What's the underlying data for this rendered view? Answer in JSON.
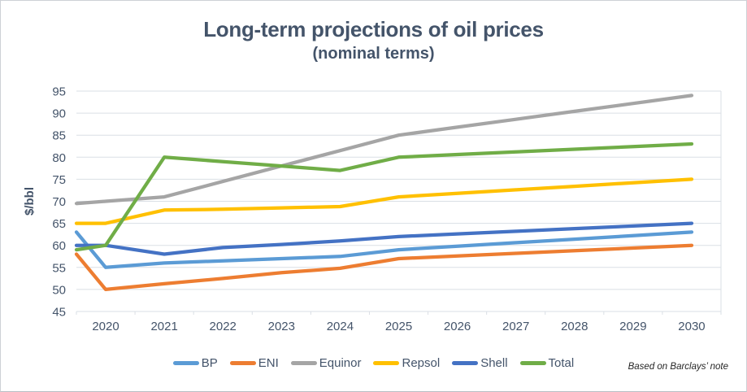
{
  "header": {
    "title": "Long-term projections of oil prices",
    "subtitle": "(nominal terms)"
  },
  "footer": {
    "note": "Based on Barclays’ note"
  },
  "chart_data": {
    "type": "line",
    "title": "Long-term projections of oil prices",
    "subtitle": "(nominal terms)",
    "ylabel": "$/bbl",
    "xlabel": "",
    "ylim": [
      45,
      95
    ],
    "y_ticks": [
      45,
      50,
      55,
      60,
      65,
      70,
      75,
      80,
      85,
      90,
      95
    ],
    "x": [
      2019,
      2020,
      2021,
      2022,
      2023,
      2024,
      2025,
      2026,
      2027,
      2028,
      2029,
      2030
    ],
    "x_tick_labels": [
      "2020",
      "2021",
      "2022",
      "2023",
      "2024",
      "2025",
      "2026",
      "2027",
      "2028",
      "2029",
      "2030"
    ],
    "layout_note": "first data point (2019) sits at the unlabeled left edge of the plot; horizontal gridlines only; legend at bottom",
    "grid": "horizontal",
    "legend_position": "bottom",
    "axis_color": "#44546A",
    "grid_color": "#dadfe5",
    "series": [
      {
        "name": "BP",
        "color": "#5B9BD5",
        "values": [
          63.0,
          55.0,
          56.0,
          56.5,
          57.0,
          57.5,
          59.0,
          59.8,
          60.6,
          61.4,
          62.2,
          63.0
        ]
      },
      {
        "name": "ENI",
        "color": "#ED7D31",
        "values": [
          58.0,
          50.0,
          51.3,
          52.5,
          53.8,
          54.8,
          57.0,
          57.6,
          58.2,
          58.8,
          59.4,
          60.0
        ]
      },
      {
        "name": "Equinor",
        "color": "#A5A5A5",
        "values": [
          69.5,
          70.0,
          71.0,
          74.5,
          78.0,
          81.5,
          85.0,
          86.8,
          88.6,
          90.4,
          92.2,
          94.0
        ]
      },
      {
        "name": "Repsol",
        "color": "#FFC000",
        "values": [
          65.0,
          65.0,
          68.0,
          68.2,
          68.5,
          68.8,
          71.0,
          71.8,
          72.6,
          73.4,
          74.2,
          75.0
        ]
      },
      {
        "name": "Shell",
        "color": "#4472C4",
        "values": [
          60.0,
          60.0,
          58.0,
          59.5,
          60.2,
          61.0,
          62.0,
          62.6,
          63.2,
          63.8,
          64.4,
          65.0
        ]
      },
      {
        "name": "Total",
        "color": "#70AD47",
        "values": [
          59.0,
          60.0,
          80.0,
          79.0,
          78.0,
          77.0,
          80.0,
          80.6,
          81.2,
          81.8,
          82.4,
          83.0
        ]
      }
    ]
  }
}
